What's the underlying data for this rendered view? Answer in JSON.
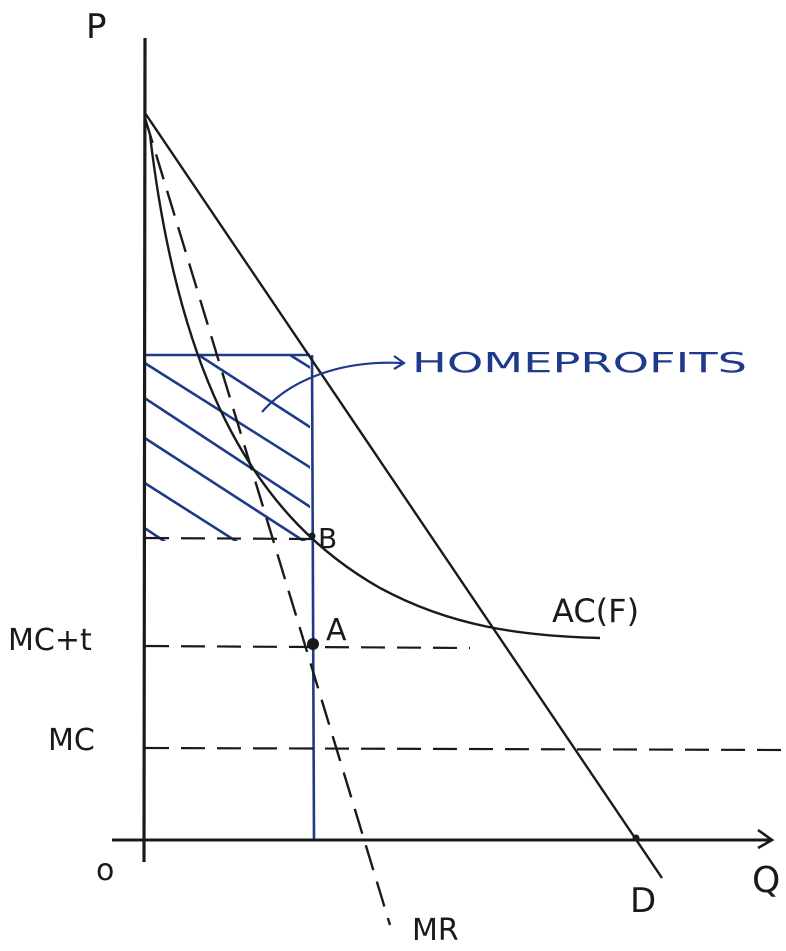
{
  "axes": {
    "y_label": "P",
    "x_label": "Q",
    "origin_label": "o"
  },
  "price_levels": {
    "mc_plus_t": "MC+t",
    "mc": "MC"
  },
  "curves": {
    "demand": "D",
    "marginal_revenue": "MR",
    "average_cost": "AC(F)"
  },
  "points": {
    "a": "A",
    "b": "B"
  },
  "annotation": {
    "profits": "HOMEPROFITS"
  },
  "colors": {
    "ink": "#1a1a1a",
    "pen_blue": "#1f3a8a"
  }
}
